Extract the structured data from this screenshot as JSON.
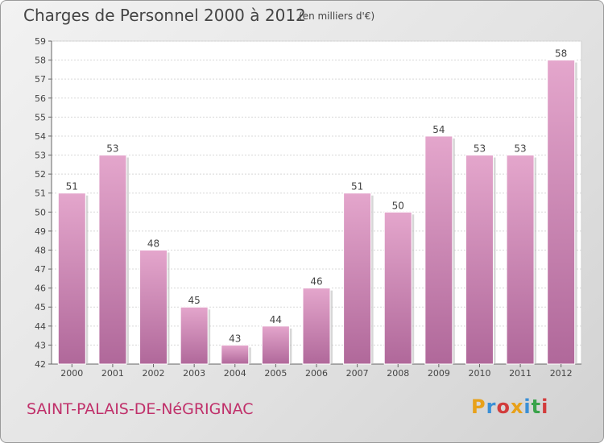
{
  "title": "Charges de Personnel 2000 à 2012",
  "subtitle": "(en milliers d'€)",
  "place": "SAINT-PALAIS-DE-NéGRIGNAC",
  "logo": {
    "letters": [
      "P",
      "r",
      "o",
      "x",
      "i",
      "t",
      "i"
    ],
    "colors": [
      "#e8a11a",
      "#3a8fd6",
      "#d23c3c",
      "#e8a11a",
      "#3a8fd6",
      "#3aa34a",
      "#d23c3c"
    ]
  },
  "colors": {
    "bar_top": "#e4a6cc",
    "bar_bottom": "#b0689a",
    "title": "#444444",
    "place": "#c0306a"
  },
  "chart_data": {
    "type": "bar",
    "categories": [
      "2000",
      "2001",
      "2002",
      "2003",
      "2004",
      "2005",
      "2006",
      "2007",
      "2008",
      "2009",
      "2010",
      "2011",
      "2012"
    ],
    "values": [
      51,
      53,
      48,
      45,
      43,
      44,
      46,
      51,
      50,
      54,
      53,
      53,
      58
    ],
    "ylim": [
      42,
      59
    ],
    "yticks": [
      42,
      43,
      44,
      45,
      46,
      47,
      48,
      49,
      50,
      51,
      52,
      53,
      54,
      55,
      56,
      57,
      58,
      59
    ],
    "grid": true,
    "data_labels": true
  }
}
